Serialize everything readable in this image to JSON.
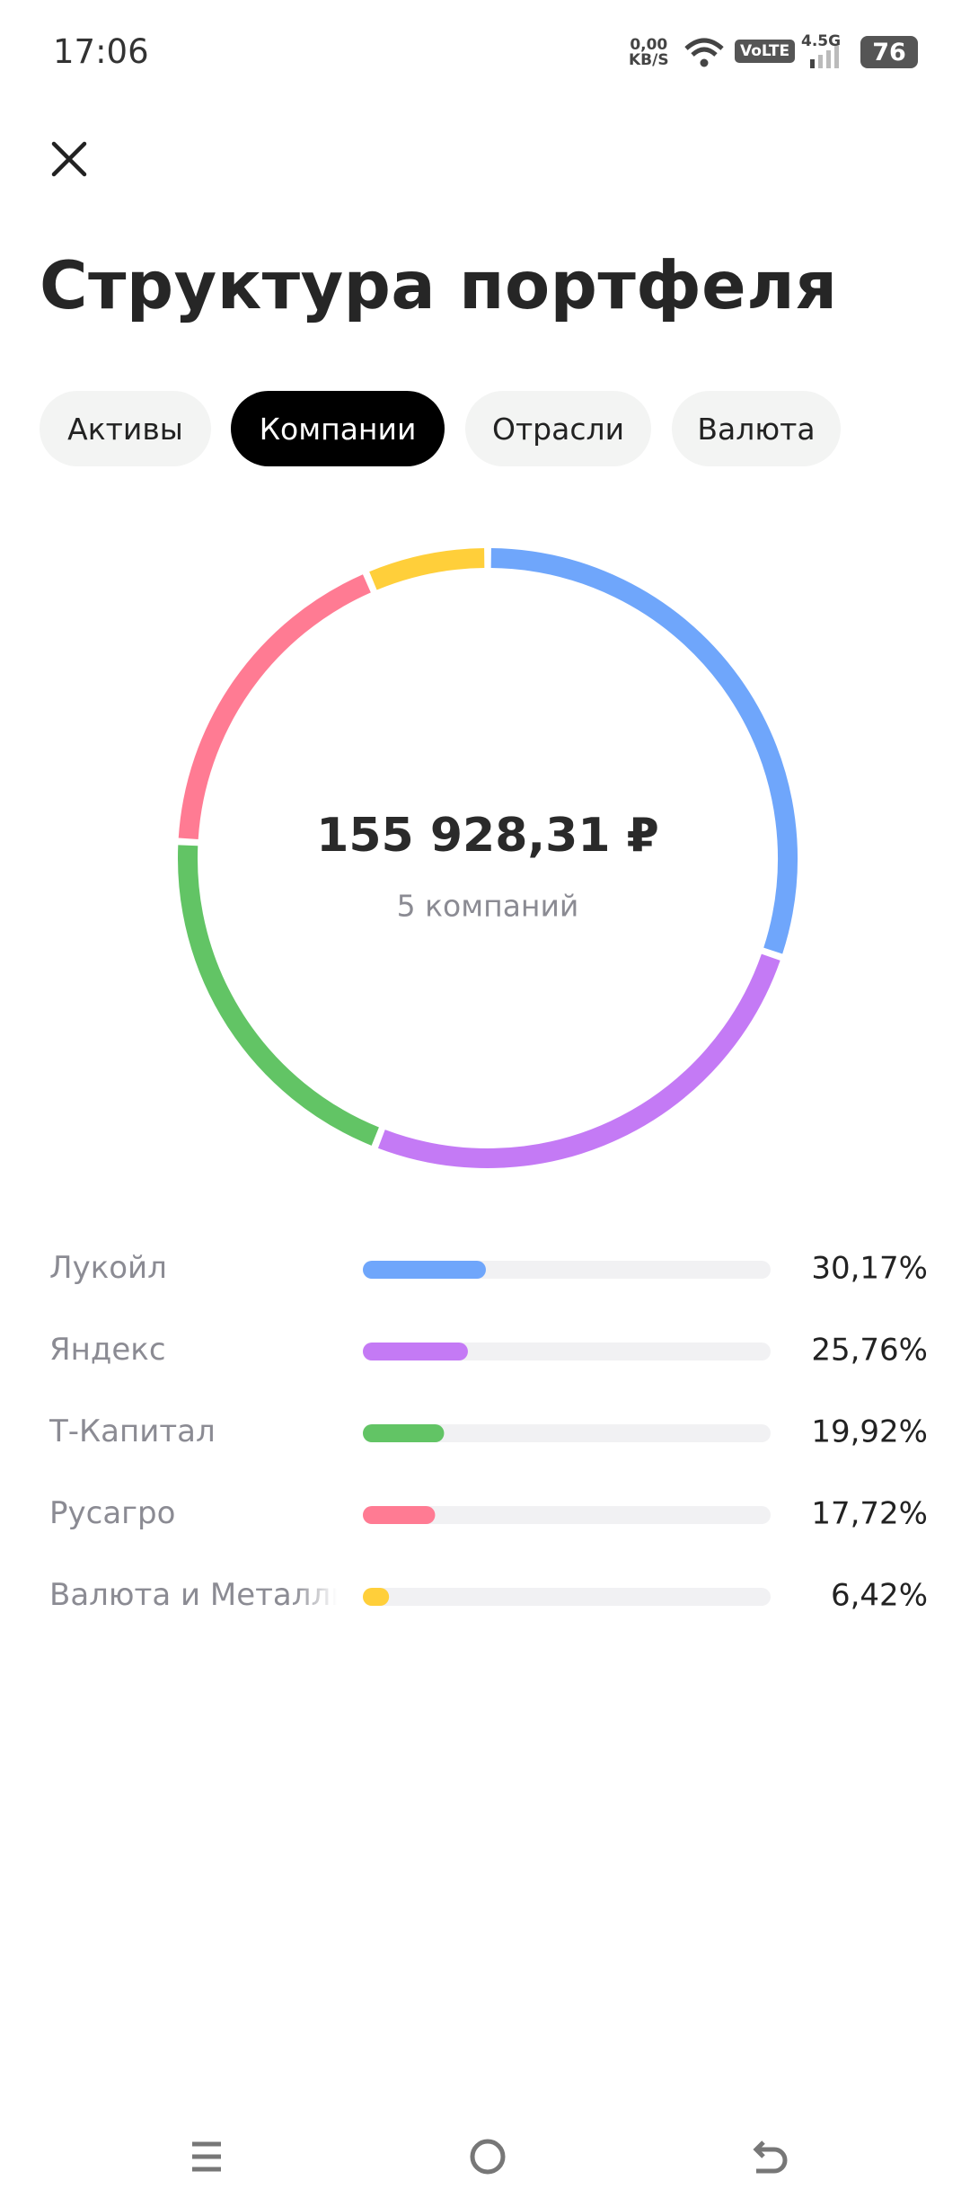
{
  "status_bar": {
    "time": "17:06",
    "speed": "0,00",
    "speed_unit": "KB/S",
    "volte": "VoLTE",
    "network": "4.5G",
    "battery": "76"
  },
  "header": {
    "title": "Структура портфеля"
  },
  "tabs": [
    "Активы",
    "Компании",
    "Отрасли",
    "Валюта"
  ],
  "chart_data": {
    "type": "pie",
    "donut": true,
    "center_value": "155 928,31 ₽",
    "center_label": "5 компаний",
    "categories": [
      "Лукойл",
      "Яндекс",
      "Т-Капитал",
      "Русагро",
      "Валюта и Металлы"
    ],
    "values": [
      30.17,
      25.76,
      19.92,
      17.72,
      6.42
    ],
    "value_labels": [
      "30,17%",
      "25,76%",
      "19,92%",
      "17,72%",
      "6,42%"
    ],
    "colors": [
      "#6fa6fb",
      "#c47af5",
      "#62c465",
      "#ff7b93",
      "#ffcf3a"
    ]
  }
}
